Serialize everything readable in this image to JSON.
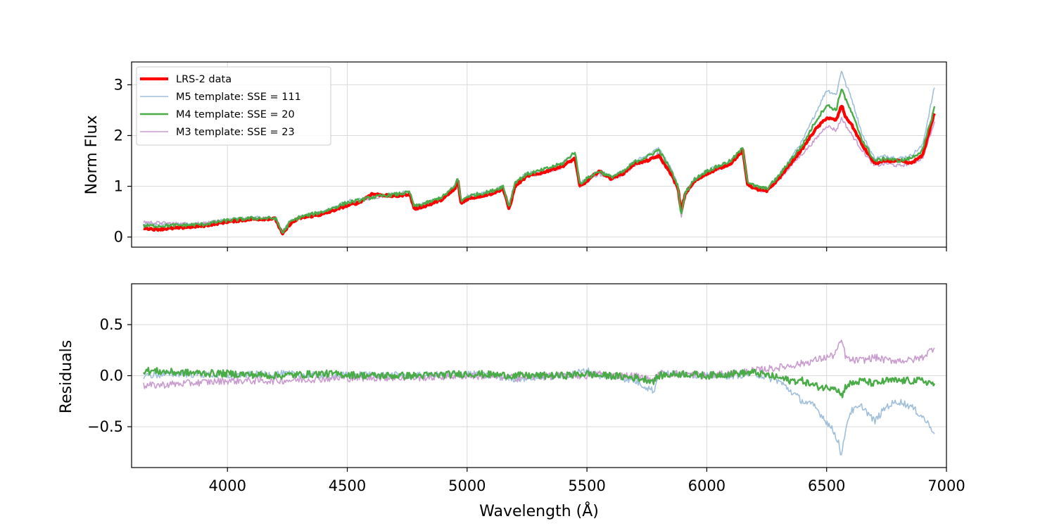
{
  "chart_data": [
    {
      "type": "line",
      "panel": "top",
      "ylabel": "Norm Flux",
      "xlim": [
        3600,
        7000
      ],
      "ylim": [
        -0.2,
        3.45
      ],
      "yticks": [
        {
          "v": 0,
          "label": "0"
        },
        {
          "v": 1,
          "label": "1"
        },
        {
          "v": 2,
          "label": "2"
        },
        {
          "v": 3,
          "label": "3"
        }
      ],
      "xticks": [
        4000,
        4500,
        5000,
        5500,
        6000,
        6500,
        7000
      ],
      "grid": true,
      "legend": {
        "placement": "top-left",
        "entries": [
          {
            "label": "LRS-2 data",
            "color": "#ff0000"
          },
          {
            "label": "M5 template: SSE = 111",
            "color": "#9fbfdb"
          },
          {
            "label": "M4 template: SSE = 20",
            "color": "#4aac47"
          },
          {
            "label": "M3 template: SSE = 23",
            "color": "#c99bcf"
          }
        ]
      },
      "series": [
        {
          "name": "M5 template: SSE = 111",
          "color": "#9fbfdb",
          "width": 1.6,
          "x": [
            3650,
            3700,
            3800,
            3900,
            4000,
            4100,
            4200,
            4230,
            4260,
            4300,
            4400,
            4500,
            4550,
            4600,
            4700,
            4760,
            4780,
            4850,
            4900,
            4950,
            4960,
            4975,
            5000,
            5100,
            5150,
            5175,
            5200,
            5250,
            5300,
            5400,
            5450,
            5470,
            5500,
            5550,
            5600,
            5650,
            5700,
            5750,
            5800,
            5850,
            5880,
            5893,
            5910,
            5950,
            6000,
            6100,
            6150,
            6170,
            6200,
            6250,
            6300,
            6350,
            6400,
            6450,
            6500,
            6540,
            6563,
            6580,
            6600,
            6650,
            6700,
            6750,
            6800,
            6850,
            6900,
            6950
          ],
          "y": [
            0.25,
            0.25,
            0.25,
            0.27,
            0.34,
            0.38,
            0.38,
            0.1,
            0.3,
            0.4,
            0.5,
            0.7,
            0.73,
            0.8,
            0.85,
            0.9,
            0.6,
            0.7,
            0.8,
            1.0,
            1.2,
            0.7,
            0.8,
            0.9,
            1.0,
            0.6,
            1.1,
            1.25,
            1.3,
            1.45,
            1.7,
            1.05,
            1.15,
            1.3,
            1.2,
            1.3,
            1.5,
            1.6,
            1.75,
            1.35,
            1.0,
            0.4,
            0.9,
            1.15,
            1.3,
            1.5,
            1.75,
            1.1,
            1.0,
            0.95,
            1.2,
            1.55,
            1.9,
            2.4,
            2.9,
            2.8,
            3.3,
            3.0,
            2.8,
            2.0,
            1.55,
            1.6,
            1.55,
            1.6,
            1.8,
            2.95
          ]
        },
        {
          "name": "M3 template: SSE = 23",
          "color": "#c99bcf",
          "width": 1.6,
          "x": [
            3650,
            3700,
            3800,
            3900,
            4000,
            4100,
            4200,
            4230,
            4260,
            4300,
            4400,
            4500,
            4550,
            4600,
            4700,
            4760,
            4780,
            4850,
            4900,
            4950,
            4960,
            4975,
            5000,
            5100,
            5150,
            5175,
            5200,
            5250,
            5300,
            5400,
            5450,
            5470,
            5500,
            5550,
            5600,
            5650,
            5700,
            5750,
            5800,
            5850,
            5880,
            5893,
            5910,
            5950,
            6000,
            6100,
            6150,
            6170,
            6200,
            6250,
            6300,
            6350,
            6400,
            6450,
            6500,
            6540,
            6563,
            6580,
            6600,
            6650,
            6700,
            6750,
            6800,
            6850,
            6900,
            6950
          ],
          "y": [
            0.3,
            0.28,
            0.26,
            0.27,
            0.32,
            0.36,
            0.37,
            0.1,
            0.28,
            0.38,
            0.48,
            0.66,
            0.7,
            0.77,
            0.82,
            0.86,
            0.58,
            0.68,
            0.78,
            0.98,
            1.15,
            0.68,
            0.78,
            0.86,
            0.96,
            0.58,
            1.05,
            1.2,
            1.25,
            1.38,
            1.6,
            1.0,
            1.1,
            1.24,
            1.14,
            1.22,
            1.42,
            1.5,
            1.65,
            1.28,
            0.95,
            0.4,
            0.86,
            1.1,
            1.25,
            1.45,
            1.7,
            1.05,
            0.95,
            0.9,
            1.12,
            1.4,
            1.65,
            1.9,
            2.2,
            2.1,
            2.35,
            2.2,
            2.05,
            1.7,
            1.4,
            1.45,
            1.4,
            1.45,
            1.55,
            2.25
          ]
        },
        {
          "name": "LRS-2 data",
          "color": "#ff0000",
          "width": 4.2,
          "x": [
            3650,
            3700,
            3800,
            3900,
            4000,
            4100,
            4200,
            4230,
            4260,
            4300,
            4400,
            4500,
            4550,
            4600,
            4700,
            4760,
            4780,
            4850,
            4900,
            4950,
            4960,
            4975,
            5000,
            5100,
            5150,
            5175,
            5200,
            5250,
            5300,
            5400,
            5450,
            5470,
            5500,
            5550,
            5600,
            5650,
            5700,
            5750,
            5800,
            5850,
            5880,
            5893,
            5910,
            5950,
            6000,
            6100,
            6150,
            6170,
            6200,
            6250,
            6300,
            6350,
            6400,
            6450,
            6500,
            6540,
            6563,
            6580,
            6600,
            6650,
            6700,
            6750,
            6800,
            6850,
            6900,
            6950
          ],
          "y": [
            0.18,
            0.15,
            0.18,
            0.22,
            0.3,
            0.35,
            0.36,
            0.05,
            0.25,
            0.37,
            0.45,
            0.62,
            0.68,
            0.85,
            0.8,
            0.85,
            0.55,
            0.65,
            0.75,
            0.95,
            1.15,
            0.65,
            0.75,
            0.85,
            0.95,
            0.55,
            1.0,
            1.2,
            1.25,
            1.4,
            1.55,
            1.0,
            1.1,
            1.3,
            1.15,
            1.25,
            1.45,
            1.5,
            1.6,
            1.25,
            0.95,
            0.5,
            0.85,
            1.1,
            1.25,
            1.45,
            1.7,
            1.05,
            0.95,
            0.9,
            1.15,
            1.45,
            1.75,
            2.1,
            2.35,
            2.3,
            2.6,
            2.35,
            2.25,
            1.8,
            1.45,
            1.5,
            1.5,
            1.45,
            1.6,
            2.45
          ]
        },
        {
          "name": "M4 template: SSE = 20",
          "color": "#4aac47",
          "width": 2.4,
          "x": [
            3650,
            3700,
            3800,
            3900,
            4000,
            4100,
            4200,
            4230,
            4260,
            4300,
            4400,
            4500,
            4550,
            4600,
            4700,
            4760,
            4780,
            4850,
            4900,
            4950,
            4960,
            4975,
            5000,
            5100,
            5150,
            5175,
            5200,
            5250,
            5300,
            5400,
            5450,
            5470,
            5500,
            5550,
            5600,
            5650,
            5700,
            5750,
            5800,
            5850,
            5880,
            5893,
            5910,
            5950,
            6000,
            6100,
            6150,
            6170,
            6200,
            6250,
            6300,
            6350,
            6400,
            6450,
            6500,
            6540,
            6563,
            6580,
            6600,
            6650,
            6700,
            6750,
            6800,
            6850,
            6900,
            6950
          ],
          "y": [
            0.22,
            0.22,
            0.23,
            0.25,
            0.33,
            0.37,
            0.37,
            0.08,
            0.29,
            0.39,
            0.5,
            0.68,
            0.72,
            0.78,
            0.84,
            0.88,
            0.6,
            0.7,
            0.8,
            1.0,
            1.2,
            0.7,
            0.8,
            0.9,
            1.0,
            0.6,
            1.08,
            1.24,
            1.3,
            1.45,
            1.68,
            1.05,
            1.15,
            1.3,
            1.18,
            1.28,
            1.48,
            1.58,
            1.72,
            1.32,
            1.0,
            0.42,
            0.88,
            1.14,
            1.3,
            1.5,
            1.75,
            1.1,
            1.0,
            0.95,
            1.2,
            1.52,
            1.82,
            2.25,
            2.6,
            2.5,
            2.95,
            2.7,
            2.5,
            1.9,
            1.5,
            1.55,
            1.5,
            1.55,
            1.7,
            2.55
          ]
        }
      ]
    },
    {
      "type": "line",
      "panel": "bottom",
      "xlabel": "Wavelength (Å)",
      "ylabel": "Residuals",
      "xlim": [
        3600,
        7000
      ],
      "ylim": [
        -0.9,
        0.9
      ],
      "yticks": [
        {
          "v": 0.5,
          "label": "0.5"
        },
        {
          "v": 0,
          "label": "0.0"
        },
        {
          "v": -0.5,
          "label": "−0.5"
        }
      ],
      "xticks": [
        {
          "v": 4000,
          "label": "4000"
        },
        {
          "v": 4500,
          "label": "4500"
        },
        {
          "v": 5000,
          "label": "5000"
        },
        {
          "v": 5500,
          "label": "5500"
        },
        {
          "v": 6000,
          "label": "6000"
        },
        {
          "v": 6500,
          "label": "6500"
        },
        {
          "v": 7000,
          "label": "7000"
        }
      ],
      "grid": true,
      "series": [
        {
          "name": "M5 template: SSE = 111",
          "color": "#9fbfdb",
          "width": 1.6,
          "x": [
            3650,
            3800,
            4000,
            4200,
            4400,
            4600,
            4800,
            5000,
            5200,
            5400,
            5500,
            5550,
            5600,
            5700,
            5780,
            5800,
            5900,
            6000,
            6100,
            6200,
            6300,
            6350,
            6400,
            6450,
            6500,
            6530,
            6550,
            6563,
            6580,
            6600,
            6650,
            6700,
            6750,
            6800,
            6850,
            6900,
            6950
          ],
          "y": [
            0.0,
            0.02,
            0.0,
            0.02,
            0.0,
            0.01,
            0.0,
            0.02,
            -0.03,
            0.0,
            0.05,
            0.0,
            0.0,
            -0.05,
            -0.15,
            0.02,
            0.02,
            0.0,
            0.0,
            0.02,
            -0.05,
            -0.15,
            -0.25,
            -0.3,
            -0.45,
            -0.55,
            -0.65,
            -0.8,
            -0.5,
            -0.35,
            -0.3,
            -0.45,
            -0.3,
            -0.25,
            -0.3,
            -0.4,
            -0.55
          ]
        },
        {
          "name": "M3 template: SSE = 23",
          "color": "#c99bcf",
          "width": 1.6,
          "x": [
            3650,
            3800,
            4000,
            4200,
            4400,
            4600,
            4800,
            5000,
            5200,
            5400,
            5500,
            5550,
            5600,
            5700,
            5780,
            5800,
            5900,
            6000,
            6100,
            6200,
            6300,
            6350,
            6400,
            6450,
            6500,
            6530,
            6550,
            6563,
            6580,
            6600,
            6650,
            6700,
            6750,
            6800,
            6850,
            6900,
            6950
          ],
          "y": [
            -0.1,
            -0.08,
            -0.05,
            -0.05,
            -0.03,
            -0.02,
            -0.02,
            0.0,
            -0.02,
            0.0,
            0.0,
            0.02,
            0.0,
            0.0,
            -0.05,
            0.02,
            0.02,
            0.0,
            0.02,
            0.05,
            0.08,
            0.1,
            0.12,
            0.15,
            0.18,
            0.2,
            0.28,
            0.35,
            0.18,
            0.15,
            0.15,
            0.18,
            0.15,
            0.15,
            0.15,
            0.18,
            0.28
          ]
        },
        {
          "name": "M4 template: SSE = 20",
          "color": "#4aac47",
          "width": 2.4,
          "x": [
            3650,
            3800,
            4000,
            4200,
            4400,
            4600,
            4800,
            5000,
            5200,
            5400,
            5500,
            5550,
            5600,
            5700,
            5780,
            5800,
            5900,
            6000,
            6100,
            6200,
            6300,
            6350,
            6400,
            6450,
            6500,
            6530,
            6550,
            6563,
            6580,
            6600,
            6650,
            6700,
            6750,
            6800,
            6850,
            6900,
            6950
          ],
          "y": [
            0.05,
            0.03,
            0.02,
            0.0,
            0.02,
            0.0,
            0.0,
            0.02,
            0.0,
            0.0,
            0.02,
            0.0,
            0.0,
            -0.02,
            -0.05,
            0.0,
            0.02,
            0.0,
            0.02,
            0.03,
            -0.02,
            -0.05,
            -0.05,
            -0.1,
            -0.12,
            -0.1,
            -0.15,
            -0.2,
            -0.1,
            -0.08,
            -0.05,
            -0.08,
            -0.05,
            -0.05,
            -0.05,
            -0.05,
            -0.08
          ]
        }
      ]
    }
  ]
}
